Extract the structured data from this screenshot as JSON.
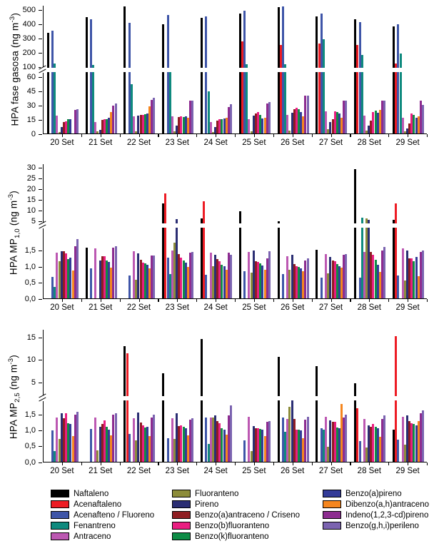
{
  "chart_data": {
    "type": "bar",
    "title": "",
    "dates": [
      "20 Set",
      "21 Set",
      "22 Set",
      "23 Set",
      "24 Set",
      "25 Set",
      "26 Set",
      "27 Set",
      "28 Set",
      "29 Set"
    ],
    "series": [
      {
        "name": "Naftaleno",
        "color": "#000000"
      },
      {
        "name": "Acenaftaleno",
        "color": "#ed1c24"
      },
      {
        "name": "Acenafteno / Fluoreno",
        "color": "#3e55a8"
      },
      {
        "name": "Fenantreno",
        "color": "#0f8a7e"
      },
      {
        "name": "Antraceno",
        "color": "#bc58b2"
      },
      {
        "name": "Fluoranteno",
        "color": "#8c8c3a"
      },
      {
        "name": "Pireno",
        "color": "#2b2e73"
      },
      {
        "name": "Benzo(a)antraceno / Criseno",
        "color": "#8f1d22"
      },
      {
        "name": "Benzo(b)fluoranteno",
        "color": "#ea1d81"
      },
      {
        "name": "Benzo(k)fluoranteno",
        "color": "#0e8c46"
      },
      {
        "name": "Benzo(a)pireno",
        "color": "#333b98"
      },
      {
        "name": "Dibenzo(a,h)antraceno",
        "color": "#f5861f"
      },
      {
        "name": "Indeno(1,2,3-cd)pireno",
        "color": "#8d2c90"
      },
      {
        "name": "Benzo(g,h,i)perileno",
        "color": "#7b63b0"
      }
    ],
    "panels": [
      {
        "ylabel_main": "HPA fase gasosa",
        "ylabel_sub": "",
        "unit_base": "(ng m",
        "unit_exp": "-3",
        "axis": {
          "broken": true,
          "lower_range": [
            0,
            65
          ],
          "upper_range": [
            100,
            530
          ],
          "upper_ticks": [
            [
              100,
              "100"
            ],
            [
              200,
              "200"
            ],
            [
              300,
              "300"
            ],
            [
              400,
              "400"
            ],
            [
              500,
              "500"
            ]
          ],
          "lower_ticks": [
            [
              0,
              "0"
            ],
            [
              15,
              "15"
            ],
            [
              30,
              "30"
            ],
            [
              45,
              "45"
            ],
            [
              60,
              "60"
            ]
          ]
        },
        "values": [
          [
            335,
            0,
            350,
            120,
            19,
            1.5,
            7,
            12,
            13,
            15,
            15,
            0,
            25,
            26
          ],
          [
            445,
            0,
            430,
            112,
            12,
            2,
            4,
            14.5,
            15,
            15.5,
            17,
            22.5,
            29.5,
            32
          ],
          [
            520,
            0,
            405,
            52,
            18,
            2,
            19,
            19.5,
            20,
            20.5,
            21,
            28.5,
            35.5,
            37.5
          ],
          [
            395,
            0,
            460,
            70,
            18,
            2,
            8.5,
            17.5,
            18,
            17.5,
            18,
            17,
            35,
            35
          ],
          [
            440,
            0,
            450,
            45,
            12,
            1.5,
            6.5,
            14,
            15,
            15.5,
            16,
            16.5,
            28,
            31
          ],
          [
            470,
            275,
            488,
            113,
            15,
            2,
            19,
            21.5,
            23,
            20,
            16,
            17,
            32,
            33
          ],
          [
            515,
            250,
            525,
            113,
            20,
            3,
            22,
            26,
            27.5,
            25.5,
            23,
            18,
            40,
            40
          ],
          [
            450,
            262,
            470,
            290,
            23.5,
            4.5,
            12,
            15.5,
            23.5,
            22.5,
            21,
            17,
            35,
            35
          ],
          [
            430,
            250,
            410,
            180,
            19,
            3,
            8,
            14,
            23,
            24,
            22,
            25,
            35,
            35
          ],
          [
            380,
            118,
            395,
            190,
            17,
            2,
            5,
            10.5,
            21,
            19.5,
            17,
            18,
            35,
            30
          ]
        ]
      },
      {
        "ylabel_main": "HPA MP",
        "ylabel_sub": "1,0",
        "unit_base": "(ng m",
        "unit_exp": "-3",
        "axis": {
          "broken": true,
          "lower_range": [
            0,
            2.2
          ],
          "upper_range": [
            5,
            30
          ],
          "upper_ticks": [
            [
              5,
              "5"
            ],
            [
              10,
              "10"
            ],
            [
              15,
              "15"
            ],
            [
              20,
              "20"
            ],
            [
              25,
              "25"
            ],
            [
              30,
              "30"
            ]
          ],
          "lower_ticks": [
            [
              0,
              "0,0"
            ],
            [
              0.5,
              "0,5"
            ],
            [
              1,
              "1,0"
            ],
            [
              1.5,
              "1,5"
            ]
          ]
        },
        "values": [
          [
            0,
            0,
            0.67,
            0.35,
            1.43,
            1.15,
            1.46,
            1.46,
            1.41,
            1.23,
            1.26,
            0.86,
            1.63,
            1.85
          ],
          [
            1.58,
            0,
            0.93,
            0,
            1.56,
            0,
            1.19,
            1.31,
            1.32,
            1.19,
            1.13,
            0.95,
            1.58,
            1.62
          ],
          [
            0,
            0,
            0.71,
            0,
            1.46,
            0.58,
            1.41,
            1.21,
            1.12,
            1.1,
            1.05,
            0.93,
            1.33,
            1.34
          ],
          [
            13,
            17.7,
            1.26,
            0.76,
            1.48,
            1.73,
            5.6,
            1.37,
            1.27,
            1.18,
            1.12,
            0.97,
            1.42,
            1.45
          ],
          [
            6,
            14,
            0.73,
            0,
            1.42,
            1.0,
            1.35,
            1.22,
            1.15,
            1.05,
            1.0,
            0.88,
            1.42,
            1.35
          ],
          [
            9.5,
            0,
            0.85,
            0,
            1.45,
            0.81,
            1.48,
            1.15,
            1.13,
            1.1,
            1.03,
            0.9,
            1.25,
            1.46
          ],
          [
            4.8,
            0,
            0.75,
            0,
            1.32,
            0.9,
            1.35,
            1.06,
            1.01,
            0.98,
            0.93,
            0.84,
            1.17,
            1.24
          ],
          [
            1.52,
            0,
            0.64,
            0,
            1.39,
            0.79,
            1.3,
            1.19,
            1.15,
            1.06,
            1.01,
            0.95,
            1.35,
            1.38
          ],
          [
            29,
            0,
            0.65,
            6.2,
            1.45,
            5.9,
            5.5,
            1.45,
            1.35,
            1.2,
            1.05,
            0.82,
            1.5,
            1.6
          ],
          [
            5.5,
            13,
            0.72,
            0,
            1.55,
            0.55,
            1.5,
            1.25,
            1.25,
            1.15,
            1.3,
            0.7,
            1.45,
            1.5
          ]
        ]
      },
      {
        "ylabel_main": "HPA MP",
        "ylabel_sub": "2,5",
        "unit_base": "(ng m",
        "unit_exp": "-3",
        "axis": {
          "broken": true,
          "lower_range": [
            0,
            1.95
          ],
          "upper_range": [
            5,
            15
          ],
          "upper_ticks": [
            [
              5,
              "5"
            ],
            [
              10,
              "10"
            ],
            [
              15,
              "15"
            ]
          ],
          "lower_ticks": [
            [
              0,
              "0,0"
            ],
            [
              0.5,
              "0,5"
            ],
            [
              1,
              "1,0"
            ],
            [
              1.5,
              "1,5"
            ]
          ]
        },
        "values": [
          [
            0,
            0,
            0.99,
            0.33,
            1.39,
            0.71,
            1.52,
            1.37,
            1.52,
            1.22,
            1.18,
            0.8,
            1.49,
            1.56
          ],
          [
            0,
            0,
            1.03,
            0,
            1.39,
            0.37,
            1.1,
            1.2,
            1.3,
            1.1,
            1.0,
            0.83,
            1.47,
            1.52
          ],
          [
            12.9,
            11.4,
            0.88,
            0,
            1.37,
            0.68,
            1.55,
            1.23,
            1.14,
            1.08,
            1.1,
            0.81,
            1.39,
            1.48
          ],
          [
            6.9,
            0,
            0.75,
            0,
            1.37,
            0.72,
            1.52,
            1.12,
            1.14,
            1.1,
            1.06,
            0.83,
            1.32,
            1.36
          ],
          [
            14.6,
            0,
            1.39,
            0.57,
            1.4,
            1.38,
            1.45,
            1.28,
            1.22,
            1.05,
            1.02,
            0.85,
            1.45,
            1.77
          ],
          [
            0,
            0,
            0.68,
            0,
            1.42,
            0.33,
            1.12,
            1.05,
            1.05,
            1.03,
            1.02,
            0.8,
            1.25,
            1.28
          ],
          [
            10.5,
            0,
            1.38,
            0.95,
            1.35,
            1.72,
            1.95,
            1.35,
            1.0,
            1.0,
            0.98,
            0.75,
            1.32,
            1.42
          ],
          [
            8.5,
            0,
            1.05,
            1.0,
            1.42,
            0.48,
            1.3,
            1.25,
            1.25,
            1.08,
            1.05,
            1.82,
            1.38,
            1.48
          ],
          [
            4.8,
            1.68,
            0.65,
            0,
            1.35,
            0.45,
            1.15,
            1.1,
            1.18,
            1.1,
            1.05,
            0.78,
            1.35,
            1.45
          ],
          [
            1.0,
            15.2,
            0.7,
            0,
            1.42,
            0.55,
            1.45,
            1.28,
            1.22,
            1.18,
            1.15,
            1.28,
            1.52,
            1.62
          ]
        ]
      }
    ],
    "legend": {
      "columns": [
        [
          0,
          1,
          2,
          3,
          4
        ],
        [
          5,
          6,
          7,
          8,
          9
        ],
        [
          10,
          11,
          12,
          13
        ]
      ]
    }
  }
}
